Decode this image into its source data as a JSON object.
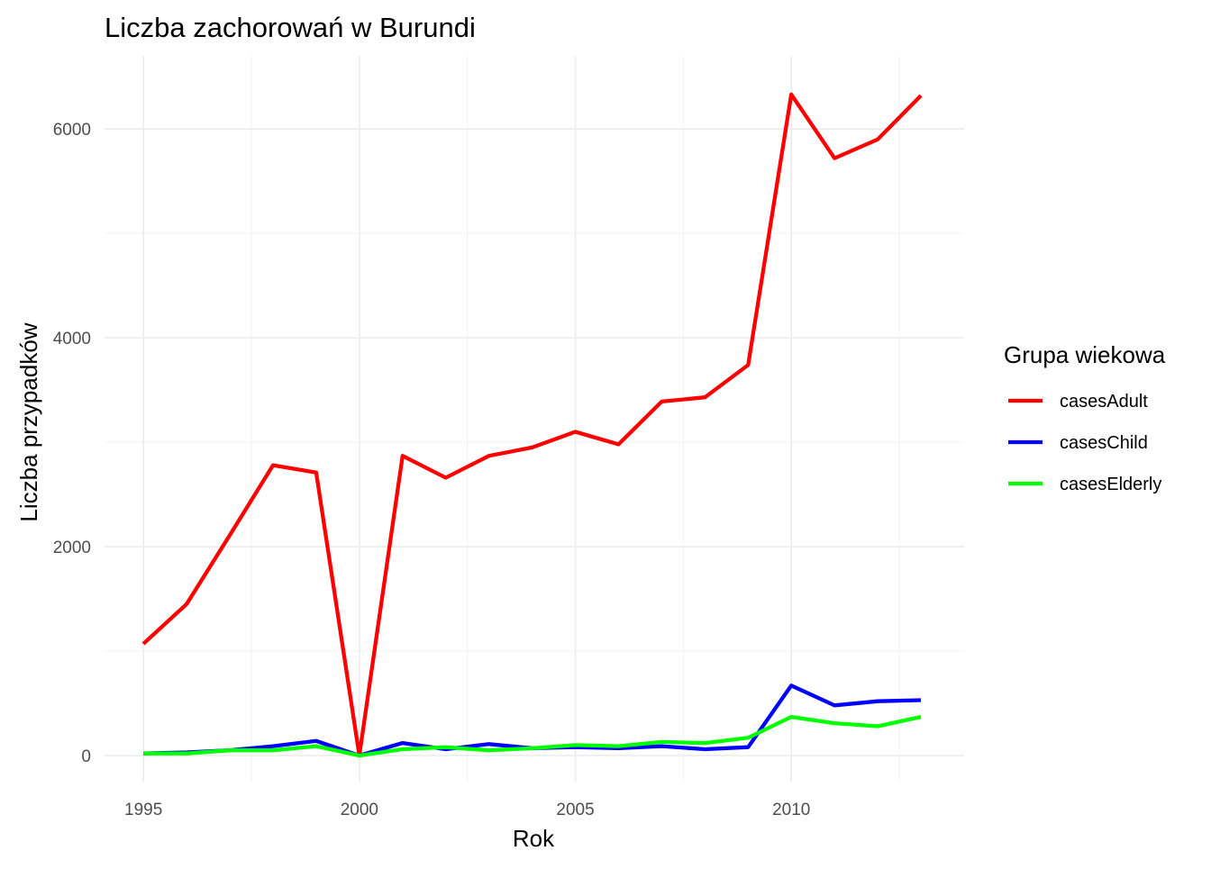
{
  "chart_data": {
    "type": "line",
    "title": "Liczba zachorowań w Burundi",
    "xlabel": "Rok",
    "ylabel": "Liczba przypadków",
    "xlim": [
      1994.1,
      2014.0
    ],
    "ylim": [
      -250,
      6700
    ],
    "x_ticks": [
      1995,
      2000,
      2005,
      2010
    ],
    "x_tick_labels": [
      "1995",
      "2000",
      "2005",
      "2010"
    ],
    "y_ticks": [
      0,
      2000,
      4000,
      6000
    ],
    "y_tick_labels": [
      "0",
      "2000",
      "4000",
      "6000"
    ],
    "grid": true,
    "legend": {
      "title": "Grupa wiekowa",
      "position": "right"
    },
    "x": [
      1995,
      1996,
      1997,
      1998,
      1999,
      2000,
      2001,
      2002,
      2003,
      2004,
      2005,
      2006,
      2007,
      2008,
      2009,
      2010,
      2011,
      2012,
      2013
    ],
    "series": [
      {
        "name": "casesAdult",
        "color": "#ff0000",
        "values": [
          1070,
          1450,
          2110,
          2780,
          2710,
          0,
          2870,
          2660,
          2870,
          2950,
          3100,
          2980,
          3390,
          3430,
          3740,
          6330,
          5720,
          5900,
          6320
        ]
      },
      {
        "name": "casesChild",
        "color": "#0000ff",
        "values": [
          20,
          30,
          50,
          90,
          140,
          0,
          120,
          60,
          110,
          70,
          80,
          70,
          90,
          60,
          80,
          670,
          480,
          520,
          530
        ]
      },
      {
        "name": "casesElderly",
        "color": "#00ff00",
        "values": [
          20,
          20,
          50,
          50,
          90,
          0,
          60,
          80,
          50,
          70,
          100,
          90,
          130,
          120,
          170,
          370,
          310,
          280,
          370
        ]
      }
    ]
  }
}
